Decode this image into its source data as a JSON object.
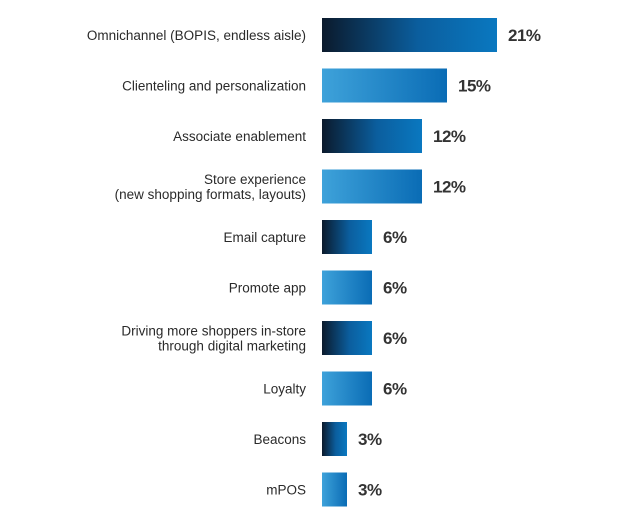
{
  "chart_data": {
    "type": "bar",
    "orientation": "horizontal",
    "title": "",
    "xlabel": "",
    "ylabel": "",
    "categories": [
      [
        "Omnichannel (BOPIS, endless aisle)"
      ],
      [
        "Clienteling and personalization"
      ],
      [
        "Associate enablement"
      ],
      [
        "Store experience",
        "(new shopping formats, layouts)"
      ],
      [
        "Email capture"
      ],
      [
        "Promote app"
      ],
      [
        "Driving more shoppers in-store",
        "through digital marketing"
      ],
      [
        "Loyalty"
      ],
      [
        "Beacons"
      ],
      [
        "mPOS"
      ]
    ],
    "values": [
      21,
      15,
      12,
      12,
      6,
      6,
      6,
      6,
      3,
      3
    ],
    "value_labels": [
      "21%",
      "15%",
      "12%",
      "12%",
      "6%",
      "6%",
      "6%",
      "6%",
      "3%",
      "3%"
    ],
    "xlim": [
      0,
      21
    ],
    "grid": false,
    "colors": {
      "dark_gradient": [
        "#0b1a2c",
        "#0a78c0"
      ],
      "light_gradient": [
        "#3ea2da",
        "#0a6cb5"
      ]
    }
  }
}
